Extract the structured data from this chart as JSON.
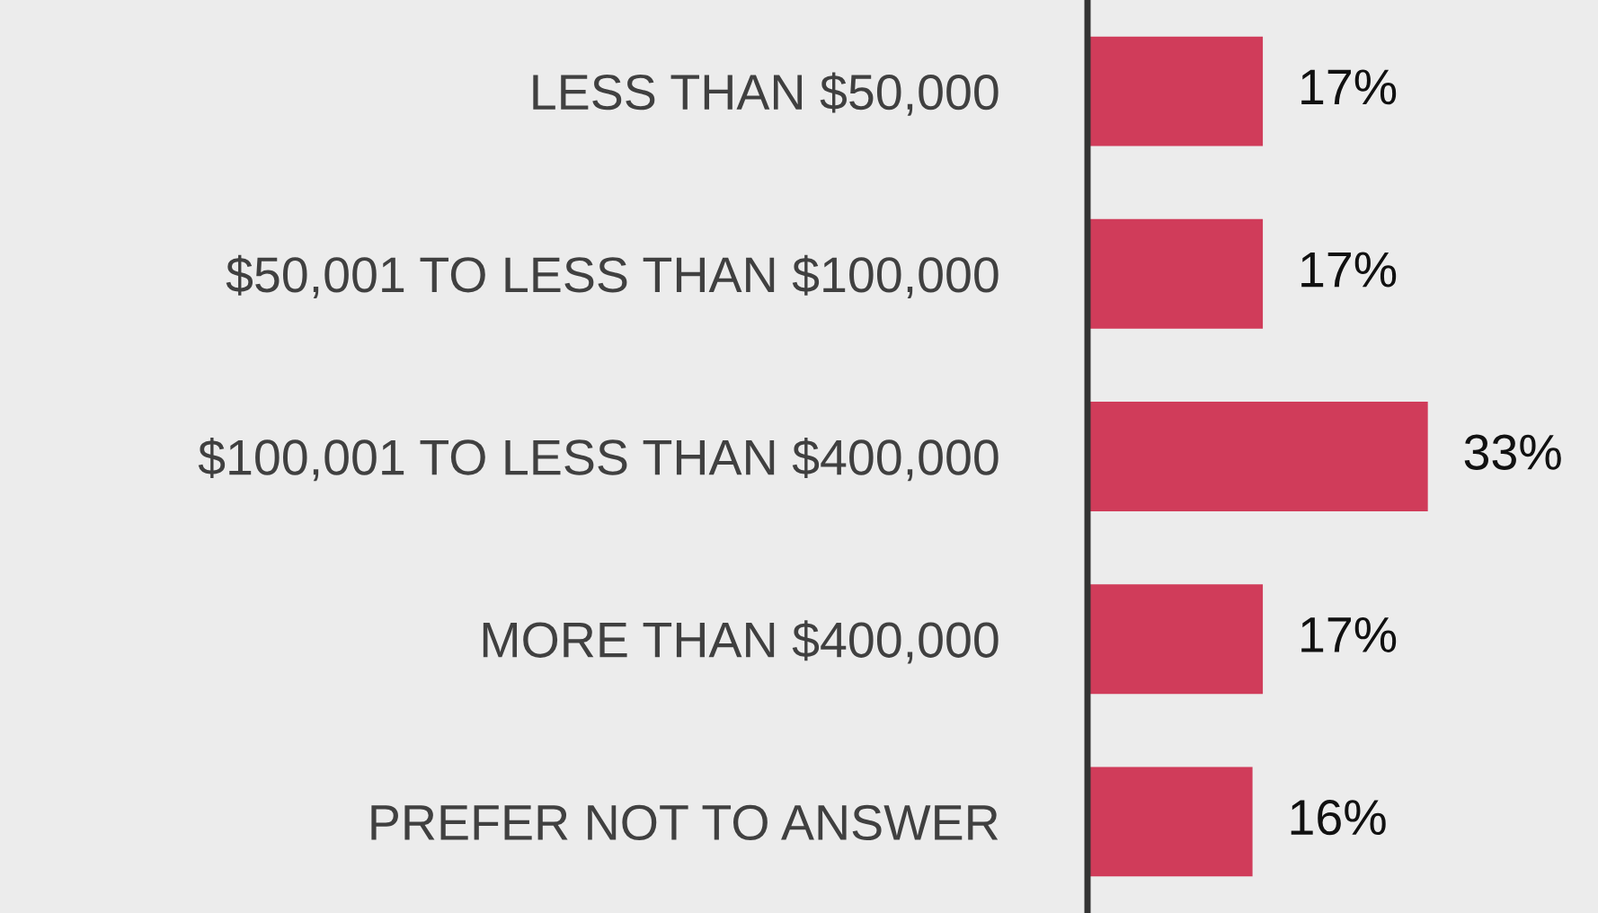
{
  "chart_data": {
    "type": "bar",
    "orientation": "horizontal",
    "categories": [
      "LESS THAN $50,000",
      "$50,001 TO LESS THAN $100,000",
      "$100,001 TO LESS THAN $400,000",
      "MORE THAN $400,000",
      "PREFER NOT TO ANSWER"
    ],
    "values": [
      17,
      17,
      33,
      17,
      16
    ],
    "value_labels": [
      "17%",
      "17%",
      "33%",
      "17%",
      "16%"
    ],
    "color": "#d03c5a",
    "grid": false,
    "legend": false
  }
}
